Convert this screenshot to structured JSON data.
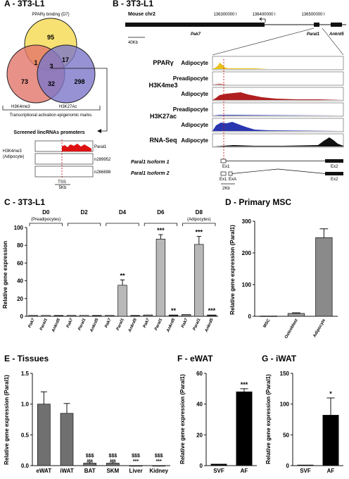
{
  "panelA": {
    "title": "A - 3T3-L1",
    "venn": {
      "top_label": "PPARγ binding (D7)",
      "left_label": "H3K4me3",
      "right_label": "H3K27Ac",
      "caption": "Transcriptional activation epigenomic marks",
      "colors": {
        "top": "#f7df6b",
        "left": "#e2756a",
        "right": "#7c77c9"
      },
      "counts": {
        "top_only": "95",
        "left_only": "73",
        "right_only": "298",
        "top_left": "1",
        "top_right": "17",
        "left_right": "32",
        "all": "3"
      }
    },
    "screen_title": "Screened lincRNAs promoters",
    "track_label_1": "H3K4me3",
    "track_label_2": "(Adipocyte)",
    "genes": [
      "Paral1",
      "n289952",
      "n266698"
    ],
    "tss": "TSS",
    "scale": "5Kb"
  },
  "panelB": {
    "title": "B - 3T3-L1",
    "chrom": "Mouse chr2",
    "coords": [
      "136300000 l",
      "136400000 l",
      "136500000 l"
    ],
    "gene_left": "Pak7",
    "gene_mid": "Paral1",
    "gene_right": "Ankrd5",
    "scale": "40Kb",
    "marks": [
      {
        "mark": "PPARγ",
        "cell": "Adipocyte",
        "color": "#e8c21a"
      },
      {
        "mark": "H3K4me3",
        "cell": "Preadipocyte",
        "color": "#b01f1f"
      },
      {
        "mark": "",
        "cell": "Adipocyte",
        "color": "#b01f1f"
      },
      {
        "mark": "H3K27ac",
        "cell": "Preadipocyte",
        "color": "#2a36b0"
      },
      {
        "mark": "",
        "cell": "Adipocyte",
        "color": "#2a36b0"
      },
      {
        "mark": "RNA-Seq",
        "cell": "Adipocyte",
        "color": "#111111"
      }
    ],
    "isoform1": "Paral1 Isoform 1",
    "isoform2": "Paral1 Isoform 2",
    "exon_labels": [
      "Ex1",
      "Ex2",
      "Ex1",
      "ExA",
      "Ex2"
    ],
    "iso_scale": "2Kb"
  },
  "chart_data": [
    {
      "panel": "C",
      "title": "C - 3T3-L1",
      "type": "bar",
      "ylabel": "Relative gene expression",
      "ylim": [
        0,
        100
      ],
      "yticks": [
        0,
        20,
        40,
        60,
        80,
        100
      ],
      "groups": [
        {
          "day": "D0",
          "note": "(Preadipocytes)",
          "genes": [
            "Pak7",
            "Paral1",
            "Ankrd5"
          ],
          "values": [
            1,
            1,
            1
          ],
          "errors": [
            0,
            0,
            0
          ],
          "stars": [
            "",
            "",
            ""
          ]
        },
        {
          "day": "D2",
          "note": "",
          "genes": [
            "Pak7",
            "Paral1",
            "Ankrd5"
          ],
          "values": [
            1,
            1,
            1
          ],
          "errors": [
            0,
            0,
            0
          ],
          "stars": [
            "",
            "",
            ""
          ]
        },
        {
          "day": "D4",
          "note": "",
          "genes": [
            "Pak7",
            "Paral1",
            "Ankrd5"
          ],
          "values": [
            1,
            35,
            1
          ],
          "errors": [
            0,
            6,
            0
          ],
          "stars": [
            "",
            "**",
            ""
          ]
        },
        {
          "day": "D6",
          "note": "",
          "genes": [
            "Pak7",
            "Paral1",
            "Ankrd5"
          ],
          "values": [
            1.5,
            87,
            1.5
          ],
          "errors": [
            0,
            5,
            0
          ],
          "stars": [
            "",
            "***",
            "**"
          ]
        },
        {
          "day": "D8",
          "note": "(Adipocytes)",
          "genes": [
            "Pak7",
            "Paral1",
            "Ankrd5"
          ],
          "values": [
            2,
            81,
            1.5
          ],
          "errors": [
            0,
            9,
            0
          ],
          "stars": [
            "",
            "***",
            "***"
          ]
        }
      ],
      "colors": [
        "#808080",
        "#b8b8b8",
        "#2a2a2a"
      ]
    },
    {
      "panel": "D",
      "title": "D - Primary MSC",
      "type": "bar",
      "ylabel": "Relative gene expression (Paral1)",
      "ylim": [
        0,
        300
      ],
      "yticks": [
        0,
        100,
        200,
        300
      ],
      "categories": [
        "MSC",
        "Osteoblast",
        "Adipocyte"
      ],
      "values": [
        1,
        9,
        248
      ],
      "errors": [
        0,
        2,
        28
      ],
      "colors": [
        "#b0b0b0",
        "#9a9a9a",
        "#8a8a8a"
      ]
    },
    {
      "panel": "E",
      "title": "E - Tissues",
      "type": "bar",
      "ylabel": "Relative gene expression (Paral1)",
      "ylim": [
        0,
        1.5
      ],
      "yticks": [
        "0.0",
        "0.5",
        "1.0",
        "1.5"
      ],
      "categories": [
        "eWAT",
        "iWAT",
        "BAT",
        "SKM",
        "Liver",
        "Kidney"
      ],
      "values": [
        1.0,
        0.85,
        0.04,
        0.04,
        0.0,
        0.0
      ],
      "errors": [
        0.2,
        0.16,
        0.02,
        0.02,
        0,
        0
      ],
      "sig_top": [
        "",
        "",
        "$$$",
        "$$$",
        "$$$",
        "$$$"
      ],
      "sig_bottom": [
        "",
        "",
        "***",
        "***",
        "***",
        "***"
      ],
      "color": "#707070"
    },
    {
      "panel": "F",
      "title": "F - eWAT",
      "type": "bar",
      "ylabel": "Relative gene expression (Paral1)",
      "ylim": [
        0,
        60
      ],
      "yticks": [
        0,
        20,
        40,
        60
      ],
      "categories": [
        "SVF",
        "AF"
      ],
      "values": [
        1,
        48
      ],
      "errors": [
        0,
        2
      ],
      "stars": [
        "",
        "***"
      ],
      "color": "#000000"
    },
    {
      "panel": "G",
      "title": "G - iWAT",
      "type": "bar",
      "ylabel": "Relative gene expression (Paral1)",
      "ylim": [
        0,
        150
      ],
      "yticks": [
        0,
        50,
        100,
        150
      ],
      "categories": [
        "SVF",
        "AF"
      ],
      "values": [
        1,
        82
      ],
      "errors": [
        0,
        28
      ],
      "stars": [
        "",
        "*"
      ],
      "color": "#000000"
    }
  ]
}
